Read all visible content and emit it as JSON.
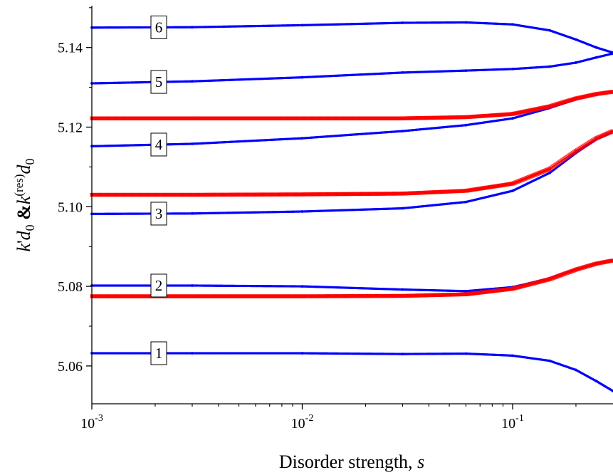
{
  "chart_data": {
    "type": "scatter",
    "title": "",
    "xlabel": "Disorder strength, s",
    "ylabel": "k'd0 &k(res)d0",
    "xscale": "log",
    "xlim": [
      0.001,
      0.3
    ],
    "ylim": [
      5.0505,
      5.1505
    ],
    "x_ticks": [
      {
        "value": 0.001,
        "mantissa": "10",
        "exp": "-3"
      },
      {
        "value": 0.01,
        "mantissa": "10",
        "exp": "-2"
      },
      {
        "value": 0.1,
        "mantissa": "10",
        "exp": "-1"
      }
    ],
    "y_ticks": [
      {
        "value": 5.06,
        "label": "5.06"
      },
      {
        "value": 5.08,
        "label": "5.08"
      },
      {
        "value": 5.1,
        "label": "5.10"
      },
      {
        "value": 5.12,
        "label": "5.12"
      },
      {
        "value": 5.14,
        "label": "5.14"
      }
    ],
    "y_minor_ticks": [
      5.07,
      5.09,
      5.11,
      5.13,
      5.15
    ],
    "grid": false,
    "legend": "none",
    "series": [
      {
        "label": "1",
        "kind": "dots",
        "color": "#0000ff",
        "points": [
          [
            0.001,
            5.0632
          ],
          [
            0.003,
            5.0632
          ],
          [
            0.01,
            5.0632
          ],
          [
            0.03,
            5.063
          ],
          [
            0.06,
            5.0631
          ],
          [
            0.1,
            5.0626
          ],
          [
            0.15,
            5.0613
          ],
          [
            0.2,
            5.059
          ],
          [
            0.25,
            5.0562
          ],
          [
            0.3,
            5.0537
          ]
        ]
      },
      {
        "label": "2",
        "kind": "dots",
        "color": "#0000ff",
        "points": [
          [
            0.001,
            5.0802
          ],
          [
            0.003,
            5.0802
          ],
          [
            0.01,
            5.08
          ],
          [
            0.03,
            5.0792
          ],
          [
            0.06,
            5.0788
          ],
          [
            0.1,
            5.0798
          ],
          [
            0.15,
            5.082
          ],
          [
            0.2,
            5.0843
          ],
          [
            0.25,
            5.0858
          ],
          [
            0.3,
            5.0866
          ]
        ]
      },
      {
        "label": "",
        "kind": "crosses",
        "color": "#ff0000",
        "points": [
          [
            0.001,
            5.0775
          ],
          [
            0.003,
            5.0775
          ],
          [
            0.01,
            5.0775
          ],
          [
            0.03,
            5.0776
          ],
          [
            0.06,
            5.078
          ],
          [
            0.1,
            5.0794
          ],
          [
            0.15,
            5.0818
          ],
          [
            0.2,
            5.0842
          ],
          [
            0.25,
            5.0857
          ],
          [
            0.3,
            5.0865
          ]
        ]
      },
      {
        "label": "3",
        "kind": "dots",
        "color": "#0000ff",
        "points": [
          [
            0.001,
            5.0982
          ],
          [
            0.003,
            5.0983
          ],
          [
            0.01,
            5.0988
          ],
          [
            0.03,
            5.0996
          ],
          [
            0.06,
            5.1012
          ],
          [
            0.1,
            5.104
          ],
          [
            0.15,
            5.1085
          ],
          [
            0.2,
            5.1135
          ],
          [
            0.25,
            5.117
          ],
          [
            0.3,
            5.1188
          ]
        ]
      },
      {
        "label": "",
        "kind": "crosses",
        "color": "#ff0000",
        "points": [
          [
            0.001,
            5.103
          ],
          [
            0.003,
            5.103
          ],
          [
            0.01,
            5.1031
          ],
          [
            0.03,
            5.1033
          ],
          [
            0.06,
            5.104
          ],
          [
            0.1,
            5.1058
          ],
          [
            0.15,
            5.1095
          ],
          [
            0.2,
            5.114
          ],
          [
            0.25,
            5.1172
          ],
          [
            0.3,
            5.119
          ]
        ]
      },
      {
        "label": "4",
        "kind": "dots",
        "color": "#0000ff",
        "points": [
          [
            0.001,
            5.1152
          ],
          [
            0.003,
            5.1158
          ],
          [
            0.01,
            5.1172
          ],
          [
            0.03,
            5.119
          ],
          [
            0.06,
            5.1205
          ],
          [
            0.1,
            5.1222
          ],
          [
            0.15,
            5.1248
          ],
          [
            0.2,
            5.127
          ],
          [
            0.25,
            5.1282
          ],
          [
            0.3,
            5.1288
          ]
        ]
      },
      {
        "label": "",
        "kind": "crosses",
        "color": "#ff0000",
        "points": [
          [
            0.001,
            5.1222
          ],
          [
            0.003,
            5.1222
          ],
          [
            0.01,
            5.1222
          ],
          [
            0.03,
            5.1222
          ],
          [
            0.06,
            5.1225
          ],
          [
            0.1,
            5.1233
          ],
          [
            0.15,
            5.1252
          ],
          [
            0.2,
            5.1272
          ],
          [
            0.25,
            5.1283
          ],
          [
            0.3,
            5.1289
          ]
        ]
      },
      {
        "label": "5",
        "kind": "dots",
        "color": "#0000ff",
        "points": [
          [
            0.001,
            5.131
          ],
          [
            0.003,
            5.1315
          ],
          [
            0.01,
            5.1325
          ],
          [
            0.03,
            5.1337
          ],
          [
            0.06,
            5.1342
          ],
          [
            0.1,
            5.1346
          ],
          [
            0.15,
            5.1352
          ],
          [
            0.2,
            5.1362
          ],
          [
            0.25,
            5.1375
          ],
          [
            0.3,
            5.1385
          ]
        ]
      },
      {
        "label": "6",
        "kind": "dots",
        "color": "#0000ff",
        "points": [
          [
            0.001,
            5.145
          ],
          [
            0.003,
            5.1451
          ],
          [
            0.01,
            5.1456
          ],
          [
            0.03,
            5.1462
          ],
          [
            0.06,
            5.1463
          ],
          [
            0.1,
            5.1458
          ],
          [
            0.15,
            5.1443
          ],
          [
            0.2,
            5.142
          ],
          [
            0.25,
            5.14
          ],
          [
            0.3,
            5.1387
          ]
        ]
      }
    ]
  }
}
